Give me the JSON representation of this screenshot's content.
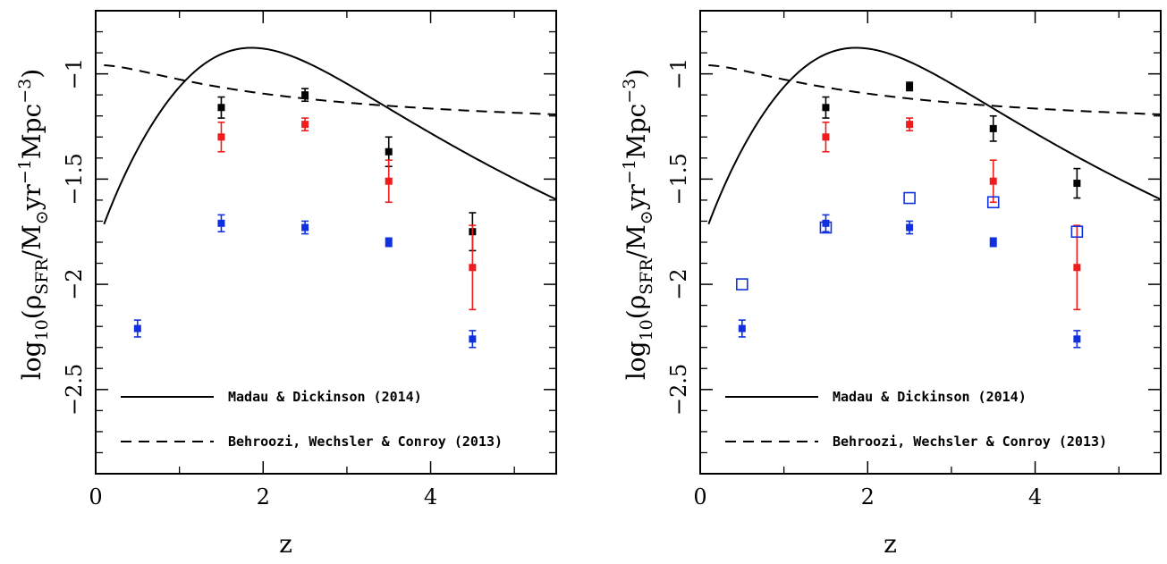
{
  "colors": {
    "black": "#000000",
    "red": "#ee1c1c",
    "blue": "#1030e0"
  },
  "chart_data": [
    {
      "type": "scatter",
      "xlabel": "z",
      "ylabel_parts": {
        "prefix": "log",
        "sub10": "10",
        "open": "(ρ",
        "subSFR": "SFR",
        "mid": "/M",
        "subsun": "⊙",
        "yr": "yr",
        "supm1": "−1",
        "mpc": "Mpc",
        "supm3": "−3",
        "close": ")"
      },
      "xlim": [
        0,
        5.5
      ],
      "ylim": [
        -2.9,
        -0.7
      ],
      "x_ticks": [
        0,
        2,
        4
      ],
      "x_tick_labels": [
        "0",
        "2",
        "4"
      ],
      "y_ticks": [
        -1,
        -1.5,
        -2,
        -2.5
      ],
      "y_tick_labels": [
        "−1",
        "−1.5",
        "−2",
        "−2.5"
      ],
      "x_minor_ticks": [
        1,
        3,
        5
      ],
      "y_minor_ticks": [
        -0.8,
        -0.9,
        -1.1,
        -1.2,
        -1.3,
        -1.4,
        -1.6,
        -1.7,
        -1.8,
        -1.9,
        -2.1,
        -2.2,
        -2.3,
        -2.4,
        -2.6,
        -2.7,
        -2.8
      ],
      "legend": [
        {
          "label": "Madau & Dickinson (2014)",
          "style": "solid"
        },
        {
          "label": "Behroozi, Wechsler & Conroy (2013)",
          "style": "dashed"
        }
      ],
      "series": [
        {
          "color": "black",
          "marker": "filled-square",
          "x": [
            1.5,
            2.5,
            3.5,
            4.5
          ],
          "y": [
            -1.16,
            -1.1,
            -1.37,
            -1.75
          ],
          "err": [
            0.05,
            0.03,
            0.07,
            0.09
          ]
        },
        {
          "color": "red",
          "marker": "filled-square",
          "x": [
            1.5,
            2.5,
            3.5,
            4.5
          ],
          "y": [
            -1.3,
            -1.24,
            -1.51,
            -1.92
          ],
          "err": [
            0.07,
            0.03,
            0.1,
            0.2
          ]
        },
        {
          "color": "blue",
          "marker": "filled-square",
          "x": [
            0.5,
            1.5,
            2.5,
            3.5,
            4.5
          ],
          "y": [
            -2.21,
            -1.71,
            -1.73,
            -1.8,
            -2.26
          ],
          "err": [
            0.04,
            0.04,
            0.03,
            0.02,
            0.04
          ]
        }
      ]
    },
    {
      "type": "scatter",
      "xlabel": "z",
      "ylabel_parts": {
        "prefix": "log",
        "sub10": "10",
        "open": "(ρ",
        "subSFR": "SFR",
        "mid": "/M",
        "subsun": "⊙",
        "yr": "yr",
        "supm1": "−1",
        "mpc": "Mpc",
        "supm3": "−3",
        "close": ")"
      },
      "xlim": [
        0,
        5.5
      ],
      "ylim": [
        -2.9,
        -0.7
      ],
      "x_ticks": [
        0,
        2,
        4
      ],
      "x_tick_labels": [
        "0",
        "2",
        "4"
      ],
      "y_ticks": [
        -1,
        -1.5,
        -2,
        -2.5
      ],
      "y_tick_labels": [
        "−1",
        "−1.5",
        "−2",
        "−2.5"
      ],
      "x_minor_ticks": [
        1,
        3,
        5
      ],
      "y_minor_ticks": [
        -0.8,
        -0.9,
        -1.1,
        -1.2,
        -1.3,
        -1.4,
        -1.6,
        -1.7,
        -1.8,
        -1.9,
        -2.1,
        -2.2,
        -2.3,
        -2.4,
        -2.6,
        -2.7,
        -2.8
      ],
      "legend": [
        {
          "label": "Madau & Dickinson (2014)",
          "style": "solid"
        },
        {
          "label": "Behroozi, Wechsler & Conroy (2013)",
          "style": "dashed"
        }
      ],
      "series": [
        {
          "color": "black",
          "marker": "filled-square",
          "x": [
            1.5,
            2.5,
            3.5,
            4.5
          ],
          "y": [
            -1.16,
            -1.06,
            -1.26,
            -1.52
          ],
          "err": [
            0.05,
            0.02,
            0.06,
            0.07
          ]
        },
        {
          "color": "red",
          "marker": "filled-square",
          "x": [
            1.5,
            2.5,
            3.5,
            4.5
          ],
          "y": [
            -1.3,
            -1.24,
            -1.51,
            -1.92
          ],
          "err": [
            0.07,
            0.03,
            0.1,
            0.2
          ]
        },
        {
          "color": "blue",
          "marker": "filled-square",
          "x": [
            0.5,
            1.5,
            2.5,
            3.5,
            4.5
          ],
          "y": [
            -2.21,
            -1.71,
            -1.73,
            -1.8,
            -2.26
          ],
          "err": [
            0.04,
            0.04,
            0.03,
            0.02,
            0.04
          ]
        },
        {
          "color": "blue",
          "marker": "open-square",
          "x": [
            0.5,
            1.5,
            2.5,
            3.5,
            4.5
          ],
          "y": [
            -2.0,
            -1.73,
            -1.59,
            -1.61,
            -1.75
          ],
          "err": [
            0,
            0,
            0,
            0,
            0
          ]
        }
      ]
    }
  ]
}
